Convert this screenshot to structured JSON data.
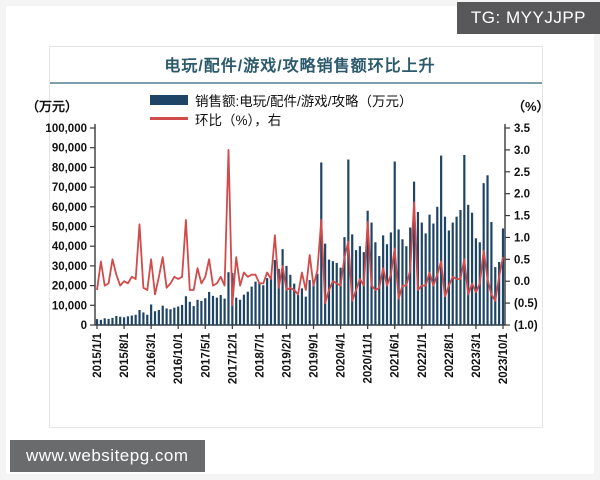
{
  "badge": {
    "text": "TG: MYYJJPP"
  },
  "watermark": {
    "text": "www.websitepg.com"
  },
  "chart": {
    "title": "电玩/配件/游戏/攻略销售额环比上升",
    "legend": [
      {
        "label": "销售额:电玩/配件/游戏/攻略（万元）",
        "type": "bar",
        "color": "#1f4566"
      },
      {
        "label": "环比（%），右",
        "type": "line",
        "color": "#d14b4b"
      }
    ],
    "left_axis": {
      "unit": "（万元）",
      "min": 0,
      "max": 100000,
      "step": 10000,
      "tick_labels": [
        "100,000",
        "90,000",
        "80,000",
        "70,000",
        "60,000",
        "50,000",
        "40,000",
        "30,000",
        "20,000",
        "10,000",
        "0"
      ]
    },
    "right_axis": {
      "unit": "（%）",
      "min": -1.0,
      "max": 3.5,
      "step": 0.5,
      "tick_labels": [
        "3.5",
        "3.0",
        "2.5",
        "2.0",
        "1.5",
        "1.0",
        "0.5",
        "0.0",
        "(0.5)",
        "(1.0)"
      ]
    },
    "x_axis": {
      "tick_every_months": 7,
      "tick_labels": [
        "2015/1/1",
        "2015/8/1",
        "2016/3/1",
        "2016/10/1",
        "2017/5/1",
        "2017/12/1",
        "2018/7/1",
        "2019/2/1",
        "2019/9/1",
        "2020/4/1",
        "2020/11/1",
        "2021/6/1",
        "2022/1/1",
        "2022/8/1",
        "2023/3/1",
        "2023/10/1"
      ]
    }
  },
  "chart_data": {
    "type": "bar",
    "title": "电玩/配件/游戏/攻略销售额环比上升",
    "x_start": "2015/1",
    "x_end": "2023/10",
    "x_frequency": "monthly",
    "ylabel_left": "万元",
    "ylabel_right": "%",
    "ylim_left": [
      0,
      100000
    ],
    "ylim_right": [
      -1.0,
      3.5
    ],
    "legend_position": "top",
    "grid": false,
    "series": [
      {
        "name": "销售额:电玩/配件/游戏/攻略（万元）",
        "type": "bar",
        "axis": "left",
        "color": "#1f4566",
        "values": [
          3000,
          2600,
          3400,
          3100,
          3600,
          4600,
          4200,
          3900,
          4400,
          4800,
          5200,
          7600,
          6400,
          5200,
          10400,
          7000,
          7600,
          9800,
          8400,
          8000,
          8800,
          9400,
          10200,
          14600,
          11800,
          9600,
          12800,
          12200,
          13600,
          16800,
          14800,
          13900,
          15200,
          13400,
          26800,
          26400,
          13900,
          12800,
          15400,
          16900,
          19500,
          22000,
          21400,
          20200,
          23800,
          24500,
          33000,
          28500,
          38500,
          30000,
          25500,
          21000,
          15200,
          18600,
          14400,
          22800,
          21200,
          26000,
          82500,
          41300,
          33200,
          32400,
          31500,
          29100,
          44600,
          84000,
          46000,
          38000,
          40000,
          37000,
          58000,
          52000,
          42000,
          35000,
          45500,
          41000,
          47000,
          83000,
          48500,
          43500,
          40000,
          49500,
          72800,
          57400,
          52000,
          46500,
          56000,
          51500,
          60000,
          86000,
          55000,
          48000,
          52000,
          55000,
          58400,
          86300,
          61000,
          57000,
          44000,
          42000,
          72000,
          76000,
          52300,
          29400,
          32000,
          49000
        ]
      },
      {
        "name": "环比（%），右",
        "type": "line",
        "axis": "right",
        "color": "#d14b4b",
        "values": [
          -0.2,
          0.45,
          -0.1,
          -0.05,
          0.5,
          0.15,
          -0.1,
          0.0,
          -0.05,
          0.1,
          0.05,
          1.3,
          -0.15,
          -0.2,
          0.5,
          -0.3,
          0.1,
          0.55,
          -0.15,
          -0.05,
          0.1,
          0.05,
          0.1,
          1.4,
          -0.2,
          -0.2,
          0.3,
          -0.05,
          0.1,
          0.5,
          -0.1,
          -0.05,
          0.1,
          -0.1,
          3.0,
          -0.55,
          0.55,
          -0.1,
          0.2,
          0.1,
          0.15,
          0.15,
          -0.05,
          -0.05,
          0.2,
          0.05,
          1.05,
          -0.15,
          0.35,
          -0.2,
          -0.15,
          -0.2,
          -0.3,
          0.2,
          -0.2,
          0.6,
          -0.1,
          0.25,
          1.4,
          -0.5,
          -0.2,
          0.0,
          -0.05,
          -0.1,
          0.55,
          0.9,
          -0.45,
          -0.2,
          0.05,
          -0.1,
          1.35,
          -0.1,
          -0.2,
          -0.15,
          0.3,
          -0.1,
          0.15,
          0.75,
          -0.4,
          -0.1,
          -0.1,
          0.25,
          1.8,
          -0.2,
          -0.1,
          -0.1,
          0.2,
          -0.1,
          0.15,
          0.45,
          -0.35,
          -0.1,
          0.1,
          0.05,
          0.05,
          0.5,
          -0.3,
          -0.05,
          -0.25,
          -0.05,
          0.7,
          0.05,
          -0.3,
          -0.45,
          0.1,
          0.55
        ]
      }
    ]
  }
}
